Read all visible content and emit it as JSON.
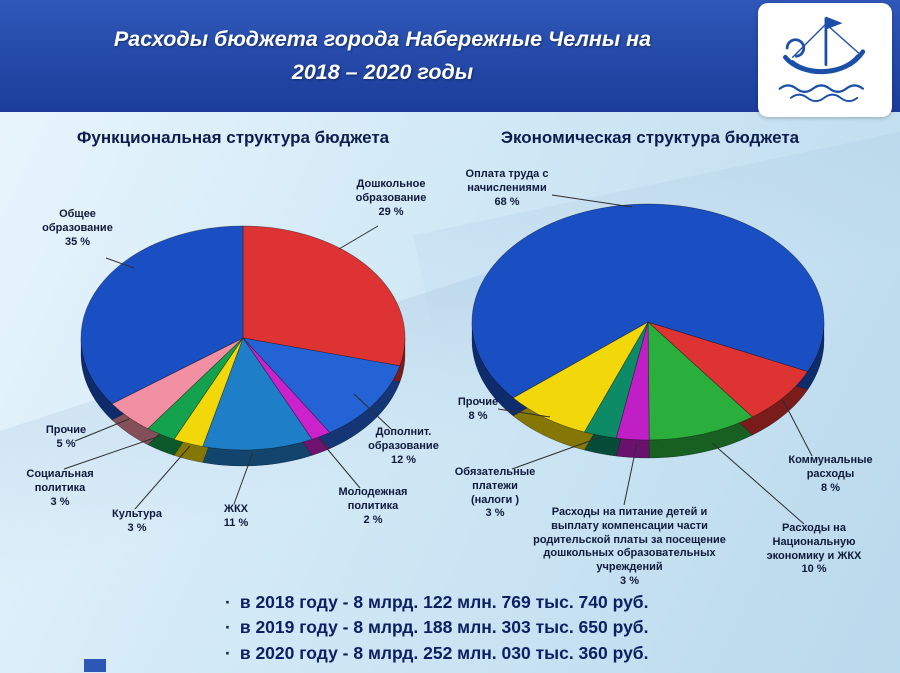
{
  "header": {
    "title_line1": "Расходы бюджета города Набережные Челны на",
    "title_line2": "2018 – 2020 годы"
  },
  "logo": {
    "icon": "ship-logo"
  },
  "colors": {
    "header_blue": "#1b3c9a",
    "main_blue": "#1a4fc4",
    "red": "#dd3333",
    "background": "#d4eaf7"
  },
  "chart_data": [
    {
      "type": "pie",
      "title": "Функциональная структура бюджета",
      "start_angle": 0,
      "unit": "%",
      "legend_position": "outside-labels",
      "slices": [
        {
          "label": "Дошкольное образование",
          "value": 29,
          "pct_label": "29 %",
          "color": "#dd3333"
        },
        {
          "label": "Дополнит. образование",
          "value": 12,
          "pct_label": "12 %",
          "color": "#2463d6"
        },
        {
          "label": "Молодежная политика",
          "value": 2,
          "pct_label": "2 %",
          "color": "#cc22cc"
        },
        {
          "label": "ЖКХ",
          "value": 11,
          "pct_label": "11 %",
          "color": "#1e7ec8"
        },
        {
          "label": "Культура",
          "value": 3,
          "pct_label": "3 %",
          "color": "#f2d80a"
        },
        {
          "label": "Социальная политика",
          "value": 3,
          "pct_label": "3 %",
          "color": "#14a24e"
        },
        {
          "label": "Прочие",
          "value": 5,
          "pct_label": "5 %",
          "color": "#f28fa2"
        },
        {
          "label": "Общее образование",
          "value": 35,
          "pct_label": "35 %",
          "color": "#1a4fc4"
        }
      ]
    },
    {
      "type": "pie",
      "title": "Экономическая структура бюджета",
      "start_angle": 114.8,
      "unit": "%",
      "legend_position": "outside-labels",
      "slices": [
        {
          "label": "Коммунальные расходы",
          "value": 8,
          "pct_label": "8 %",
          "color": "#dd3333"
        },
        {
          "label": "Расходы на Национальную экономику и ЖКХ",
          "value": 10,
          "pct_label": "10 %",
          "color": "#2aae3c"
        },
        {
          "label": "Расходы на питание детей и выплату компенсации части родительской платы за посещение дошкольных образовательных учреждений",
          "value": 3,
          "pct_label": "3 %",
          "color": "#bf1fc4"
        },
        {
          "label": "Обязательные платежи (налоги )",
          "value": 3,
          "pct_label": "3 %",
          "color": "#0d8a66"
        },
        {
          "label": "Прочие",
          "value": 8,
          "pct_label": "8 %",
          "color": "#f2d80a"
        },
        {
          "label": "Оплата труда с начислениями",
          "value": 68,
          "pct_label": "68 %",
          "color": "#1a4fc4"
        }
      ]
    }
  ],
  "footer": {
    "bullet": "·",
    "items": [
      "в 2018 году - 8 млрд. 122 млн. 769 тыс. 740 руб.",
      "в 2019 году - 8 млрд. 188 млн. 303 тыс. 650 руб.",
      "в 2020 году - 8 млрд. 252 млн. 030 тыс. 360 руб."
    ]
  }
}
